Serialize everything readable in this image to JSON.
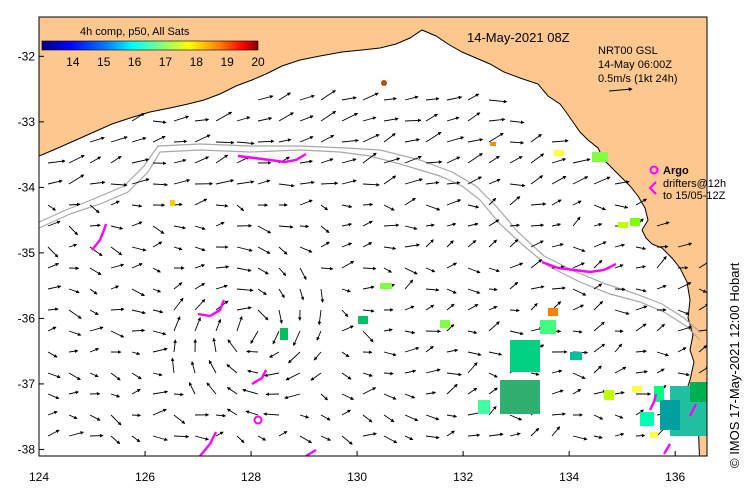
{
  "map": {
    "title": "14-May-2021 08Z",
    "credit": "© IMOS 17-May-2021 12:00 Hobart",
    "lon_ticks": [
      "124",
      "126",
      "128",
      "130",
      "132",
      "134",
      "136"
    ],
    "lat_ticks": [
      "-32",
      "-33",
      "-34",
      "-35",
      "-36",
      "-37",
      "-38"
    ],
    "lon_range": [
      124,
      136.6
    ],
    "lat_range": [
      -31.4,
      -38.1
    ],
    "land_color": "#fcc890",
    "ocean_color": "#ffffff"
  },
  "colorbar": {
    "title": "4h comp, p50, All Sats",
    "tick_labels": [
      "14",
      "15",
      "16",
      "17",
      "18",
      "19",
      "20"
    ],
    "range": [
      13,
      20
    ],
    "colors": [
      "#00007f",
      "#0000ff",
      "#007fff",
      "#00ffff",
      "#7fff7f",
      "#ffff00",
      "#ff7f00",
      "#ff0000",
      "#7f0000"
    ]
  },
  "velocity_info": {
    "line1": "NRT00 GSL",
    "line2": "14-May 06:00Z",
    "line3": "0.5m/s (1kt 24h)"
  },
  "argo_legend": {
    "argo_label": "Argo",
    "drifter_line1": "drifters@12h",
    "drifter_line2": "to 15/05-12Z",
    "marker_color": "#ff00ff"
  }
}
